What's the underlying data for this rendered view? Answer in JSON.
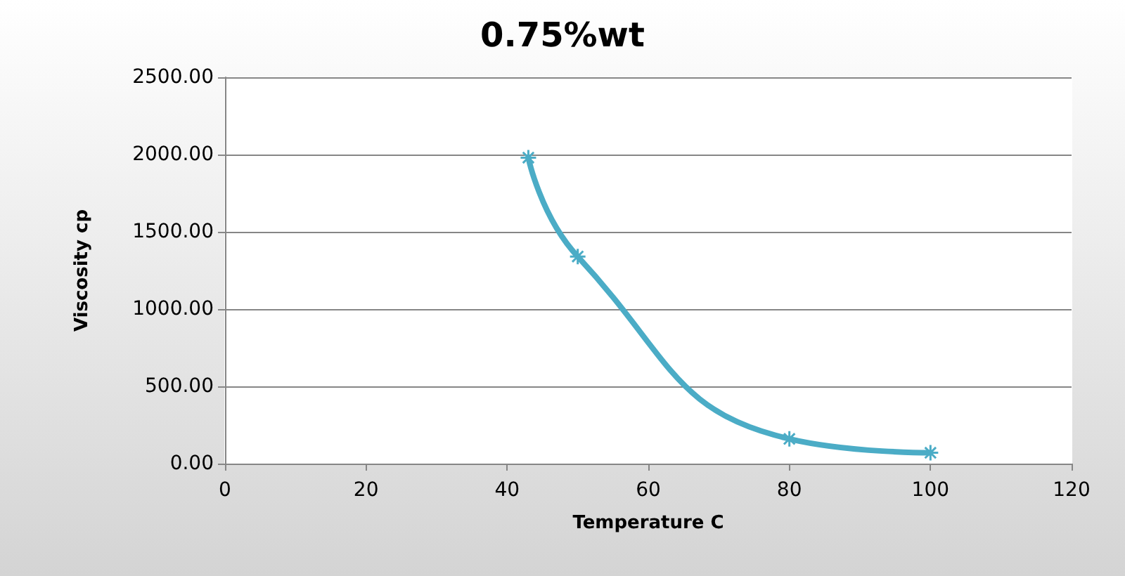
{
  "chart_data": {
    "type": "line",
    "title": "0.75%wt",
    "xlabel": "Temperature C",
    "ylabel": "Viscosity cp",
    "x": [
      43,
      50,
      80,
      100
    ],
    "series": [
      {
        "color": "#4bacc6",
        "values": [
          1980,
          1340,
          160,
          70
        ]
      }
    ],
    "xlim": [
      0,
      120
    ],
    "xticks": [
      0,
      20,
      40,
      60,
      80,
      100,
      120
    ],
    "ylim": [
      0,
      2500
    ],
    "yticks": [
      {
        "value": 0,
        "label": "0.00"
      },
      {
        "value": 500,
        "label": "500.00"
      },
      {
        "value": 1000,
        "label": "1000.00"
      },
      {
        "value": 1500,
        "label": "1500.00"
      },
      {
        "value": 2000,
        "label": "2000.00"
      },
      {
        "value": 2500,
        "label": "2500.00"
      }
    ],
    "grid": "y",
    "marker": "cross",
    "line_style": "solid"
  }
}
